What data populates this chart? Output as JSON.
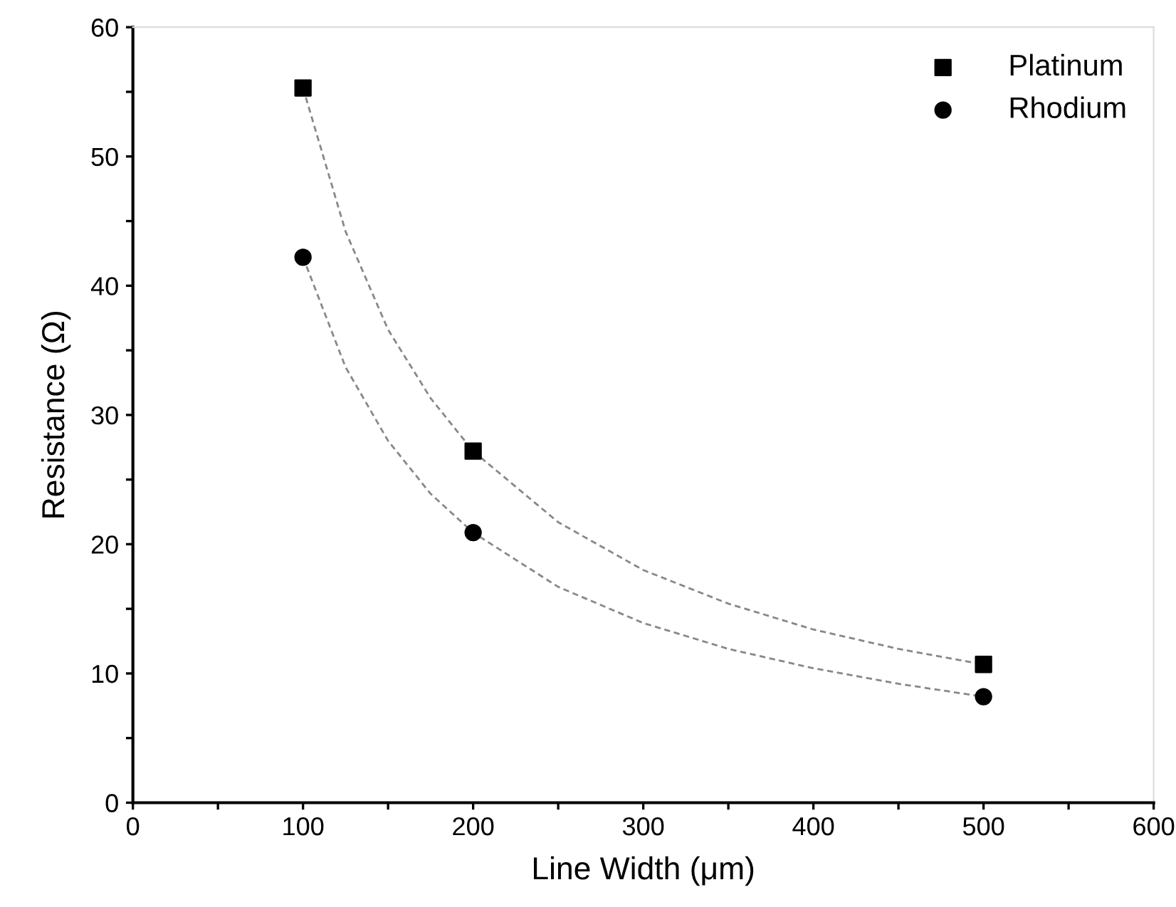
{
  "chart_data": {
    "type": "scatter",
    "xlabel": "Line Width (μm)",
    "ylabel": "Resistance (Ω)",
    "x": [
      100,
      200,
      500
    ],
    "series": [
      {
        "name": "Platinum",
        "color": "#000000",
        "marker": "square",
        "values": [
          55.3,
          27.2,
          10.7
        ]
      },
      {
        "name": "Rhodium",
        "color": "#000000",
        "marker": "circle",
        "values": [
          42.2,
          20.9,
          8.2
        ]
      },
      {
        "type": "line",
        "color": "#888888",
        "line_style": "dashed",
        "marker": "none",
        "x": [
          100,
          125,
          150,
          175,
          200,
          250,
          300,
          350,
          400,
          450,
          500
        ],
        "values": [
          55.3,
          44.2,
          36.6,
          31.3,
          27.2,
          21.7,
          18.0,
          15.4,
          13.4,
          11.9,
          10.7
        ]
      },
      {
        "type": "line",
        "color": "#888888",
        "line_style": "dashed",
        "marker": "none",
        "x": [
          100,
          125,
          150,
          175,
          200,
          250,
          300,
          350,
          400,
          450,
          500
        ],
        "values": [
          42.2,
          33.7,
          28.0,
          23.9,
          20.9,
          16.7,
          13.9,
          11.9,
          10.4,
          9.2,
          8.2
        ]
      }
    ],
    "xlim": [
      0,
      600
    ],
    "ylim": [
      0,
      60
    ],
    "xticks": [
      0,
      {
        "value": 50,
        "label": null
      },
      100,
      {
        "value": 150,
        "label": null
      },
      200,
      {
        "value": 250,
        "label": null
      },
      300,
      {
        "value": 350,
        "label": null
      },
      400,
      {
        "value": 450,
        "label": null
      },
      500,
      {
        "value": 550,
        "label": null
      },
      600
    ],
    "yticks": [
      0,
      {
        "value": 5,
        "label": null
      },
      10,
      {
        "value": 15,
        "label": null
      },
      20,
      {
        "value": 25,
        "label": null
      },
      30,
      {
        "value": 35,
        "label": null
      },
      40,
      {
        "value": 45,
        "label": null
      },
      50,
      {
        "value": 55,
        "label": null
      },
      60
    ],
    "grid": false,
    "legend": "top right"
  }
}
